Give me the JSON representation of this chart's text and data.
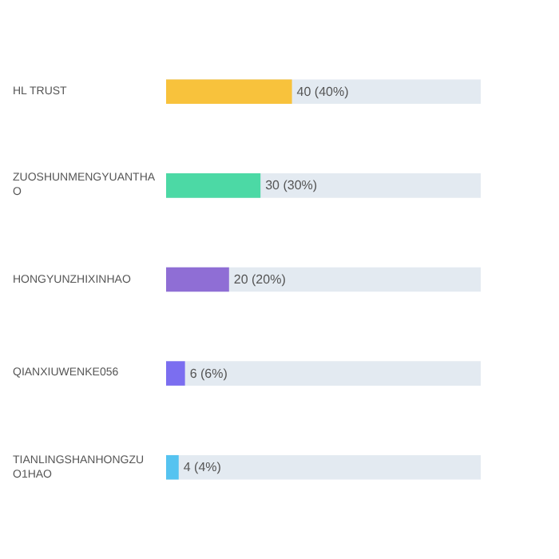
{
  "chart_data": {
    "type": "bar",
    "orientation": "horizontal",
    "categories": [
      "HL TRUST",
      "ZUOSHUNMENGYUANTHAO",
      "HONGYUNZHIXINHAO",
      "QIANXIUWENKE056",
      "TIANLINGSHANHONGZUO1HAO"
    ],
    "values": [
      40,
      30,
      20,
      6,
      4
    ],
    "colors": [
      "#f8c23c",
      "#4cd9a5",
      "#8f6ed5",
      "#7b6ef0",
      "#55c3f0"
    ],
    "value_labels": [
      "40 (40%)",
      "30 (30%)",
      "20 (20%)",
      "6 (6%)",
      "4 (4%)"
    ],
    "xlim": [
      0,
      100
    ],
    "tick_labels": false,
    "grid": false,
    "legend": false
  }
}
